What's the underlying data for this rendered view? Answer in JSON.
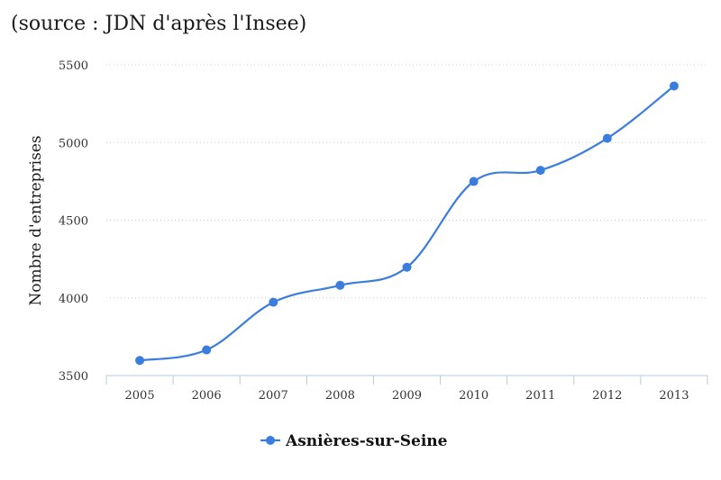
{
  "chart_data": {
    "type": "line",
    "title": "(source : JDN d'après l'Insee)",
    "xlabel": "",
    "ylabel": "Nombre d'entreprises",
    "categories": [
      "2005",
      "2006",
      "2007",
      "2008",
      "2009",
      "2010",
      "2011",
      "2012",
      "2013"
    ],
    "series": [
      {
        "name": "Asnières-sur-Seine",
        "values": [
          3597,
          3665,
          3972,
          4081,
          4197,
          4749,
          4821,
          5027,
          5364
        ]
      }
    ],
    "ylim": [
      3500,
      5500
    ],
    "yticks": [
      "3500",
      "4000",
      "4500",
      "5000",
      "5500"
    ],
    "grid": true,
    "legend": "bottom-center",
    "colors": {
      "series": "#3b7ddd",
      "grid": "#cfcfcf",
      "axis": "#b8c9dd"
    }
  }
}
